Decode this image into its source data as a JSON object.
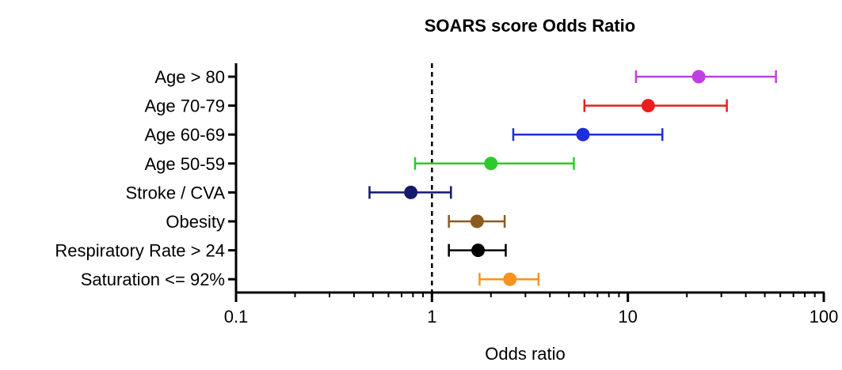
{
  "chart_data": {
    "type": "forest",
    "title": "SOARS score Odds Ratio",
    "xlabel": "Odds ratio",
    "x_scale": "log",
    "xlim": [
      0.1,
      100
    ],
    "x_ticks": [
      {
        "value": 0.1,
        "label": "0.1"
      },
      {
        "value": 1,
        "label": "1"
      },
      {
        "value": 10,
        "label": "10"
      },
      {
        "value": 100,
        "label": "100"
      }
    ],
    "reference_line": {
      "value": 1,
      "style": "dashed"
    },
    "grid": false,
    "rows": [
      {
        "label": "Age > 80",
        "or": 23,
        "ci_low": 11,
        "ci_high": 57,
        "color": "#c13fe0"
      },
      {
        "label": "Age 70-79",
        "or": 12.7,
        "ci_low": 6,
        "ci_high": 32,
        "color": "#ee1c1c"
      },
      {
        "label": "Age 60-69",
        "or": 5.9,
        "ci_low": 2.6,
        "ci_high": 15,
        "color": "#1f2fd8"
      },
      {
        "label": "Age 50-59",
        "or": 2.0,
        "ci_low": 0.82,
        "ci_high": 5.3,
        "color": "#2ec92e"
      },
      {
        "label": "Stroke / CVA",
        "or": 0.78,
        "ci_low": 0.48,
        "ci_high": 1.25,
        "color": "#141a6e"
      },
      {
        "label": "Obesity",
        "or": 1.7,
        "ci_low": 1.22,
        "ci_high": 2.35,
        "color": "#8b5a1e"
      },
      {
        "label": "Respiratory Rate > 24",
        "or": 1.72,
        "ci_low": 1.22,
        "ci_high": 2.38,
        "color": "#000000"
      },
      {
        "label": "Saturation <= 92%",
        "or": 2.5,
        "ci_low": 1.75,
        "ci_high": 3.5,
        "color": "#f7921e"
      }
    ]
  }
}
